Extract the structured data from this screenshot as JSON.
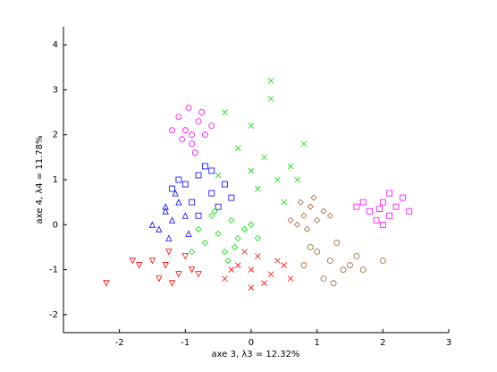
{
  "chart_data": {
    "type": "scatter",
    "x_label": "axe 3,  λ3 = 12.32%",
    "y_label": "axe 4,  λ4 = 11.78%",
    "xlim": [
      -2.85,
      3
    ],
    "ylim": [
      -2.4,
      4.4
    ],
    "xticks": [
      -2,
      -1,
      0,
      1,
      2,
      3
    ],
    "yticks": [
      -2,
      -1,
      0,
      1,
      2,
      3,
      4
    ],
    "grid": false,
    "series": [
      {
        "color": "#ff00ff",
        "marker": "circle",
        "x": [
          -1.0,
          -0.8,
          -0.9,
          -1.1,
          -0.7,
          -0.95,
          -0.85,
          -1.2,
          -0.6,
          -1.05,
          -0.75,
          -0.9
        ],
        "values": [
          2.1,
          2.3,
          1.8,
          2.4,
          2.0,
          2.6,
          1.6,
          2.1,
          2.2,
          1.9,
          2.5,
          2.0
        ]
      },
      {
        "color": "#ff00ff",
        "marker": "square",
        "x": [
          1.8,
          2.0,
          2.2,
          1.9,
          2.1,
          2.3,
          1.7,
          2.0,
          2.4,
          1.6,
          2.1,
          1.95
        ],
        "values": [
          0.3,
          0.5,
          0.4,
          0.1,
          0.2,
          0.6,
          0.5,
          0.0,
          0.3,
          0.4,
          0.7,
          0.35
        ]
      },
      {
        "color": "#0000ff",
        "marker": "square",
        "x": [
          -1.0,
          -0.8,
          -0.6,
          -0.9,
          -0.7,
          -1.2,
          -0.4,
          -0.5,
          -0.8,
          -1.1,
          -0.3,
          -0.6
        ],
        "values": [
          0.9,
          1.1,
          0.7,
          0.5,
          1.3,
          0.8,
          0.9,
          0.4,
          0.2,
          1.0,
          0.6,
          1.2
        ]
      },
      {
        "color": "#0000ff",
        "marker": "triangle",
        "x": [
          -1.3,
          -1.2,
          -1.1,
          -1.4,
          -1.0,
          -1.25,
          -1.15,
          -1.5,
          -0.95,
          -1.3
        ],
        "values": [
          0.3,
          0.1,
          0.5,
          -0.1,
          0.2,
          -0.3,
          0.7,
          0.0,
          -0.2,
          0.4
        ]
      },
      {
        "color": "#00dd00",
        "marker": "x",
        "x": [
          0.2,
          0.0,
          0.4,
          -0.2,
          0.6,
          0.3,
          0.1,
          0.8,
          -0.4,
          0.5,
          0.0,
          0.7,
          0.3,
          -0.5
        ],
        "values": [
          1.5,
          2.2,
          1.0,
          1.7,
          1.3,
          2.8,
          0.8,
          1.8,
          2.5,
          0.5,
          1.2,
          1.0,
          3.2,
          1.1
        ]
      },
      {
        "color": "#00dd00",
        "marker": "diamond",
        "x": [
          -0.5,
          -0.3,
          -0.7,
          -0.1,
          -0.4,
          -0.6,
          -0.2,
          -0.8,
          0.0,
          -0.35,
          -0.55,
          -0.25,
          -0.9,
          0.1
        ],
        "values": [
          -0.2,
          0.1,
          -0.4,
          -0.1,
          -0.6,
          0.2,
          -0.3,
          -0.1,
          0.0,
          -0.8,
          0.3,
          -0.5,
          -0.6,
          -0.3
        ]
      },
      {
        "color": "#ff0000",
        "marker": "triangle-down",
        "x": [
          -1.3,
          -1.1,
          -1.5,
          -0.9,
          -1.2,
          -1.7,
          -1.0,
          -1.4,
          -2.2,
          -1.8,
          -1.25,
          -0.8
        ],
        "values": [
          -0.9,
          -1.1,
          -0.8,
          -1.0,
          -1.3,
          -0.9,
          -0.7,
          -1.2,
          -1.3,
          -0.8,
          -0.6,
          -1.1
        ]
      },
      {
        "color": "#ff0000",
        "marker": "x",
        "x": [
          0.0,
          -0.2,
          0.3,
          0.1,
          -0.4,
          0.5,
          0.2,
          -0.1,
          0.4,
          -0.3,
          0.6,
          0.0
        ],
        "values": [
          -1.0,
          -0.9,
          -1.1,
          -0.7,
          -1.2,
          -0.9,
          -1.3,
          -0.6,
          -0.8,
          -1.0,
          -1.2,
          -1.4
        ]
      },
      {
        "color": "#996633",
        "marker": "diamond",
        "x": [
          0.8,
          0.9,
          1.0,
          0.7,
          1.1,
          0.85,
          0.95,
          0.75,
          1.2,
          0.6
        ],
        "values": [
          0.2,
          0.4,
          0.1,
          0.0,
          0.3,
          -0.1,
          0.6,
          0.5,
          0.2,
          0.1
        ]
      },
      {
        "color": "#996633",
        "marker": "circle",
        "x": [
          1.2,
          1.0,
          1.4,
          0.8,
          1.6,
          1.3,
          1.1,
          1.7,
          0.9,
          1.5,
          2.0,
          1.25
        ],
        "values": [
          -0.8,
          -0.6,
          -1.0,
          -0.9,
          -0.7,
          -0.4,
          -1.2,
          -1.0,
          -0.5,
          -0.9,
          -0.8,
          -1.3
        ]
      }
    ]
  }
}
